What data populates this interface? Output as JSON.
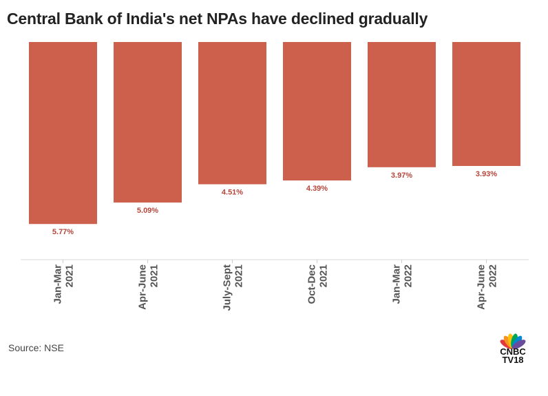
{
  "title": "Central Bank of India's net NPAs have declined gradually",
  "source": "Source: NSE",
  "logo": {
    "line1": "CNBC",
    "line2": "TV18"
  },
  "colors": {
    "bar": "#cd5f4d",
    "value_label": "#b5453a"
  },
  "chart_data": {
    "type": "bar",
    "orientation": "inverted",
    "title": "Central Bank of India's net NPAs have declined gradually",
    "xlabel": "",
    "ylabel": "",
    "categories": [
      [
        "Jan-Mar",
        "2021"
      ],
      [
        "Apr-June",
        "2021"
      ],
      [
        "July-Sept",
        "2021"
      ],
      [
        "Oct-Dec",
        "2021"
      ],
      [
        "Jan-Mar",
        "2022"
      ],
      [
        "Apr-June",
        "2022"
      ]
    ],
    "values": [
      5.77,
      5.09,
      4.51,
      4.39,
      3.97,
      3.93
    ],
    "value_labels": [
      "5.77%",
      "5.09%",
      "4.51%",
      "4.39%",
      "3.97%",
      "3.93%"
    ],
    "ylim": [
      0,
      6.9
    ],
    "grid": false
  }
}
